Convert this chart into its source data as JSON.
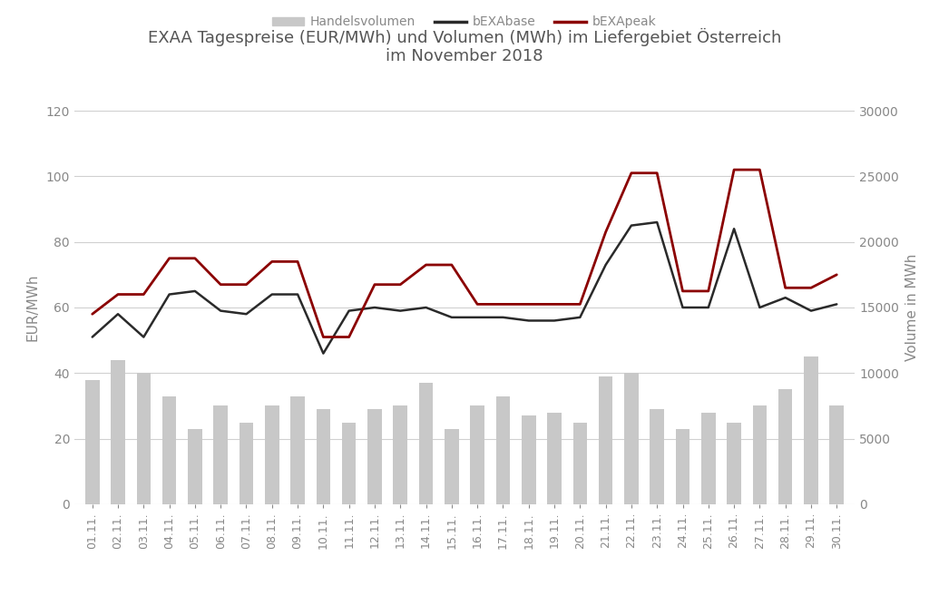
{
  "title": "EXAA Tagespreise (EUR/MWh) und Volumen (MWh) im Liefergebiet Österreich\nim November 2018",
  "ylabel_left": "EUR/MWh",
  "ylabel_right": "Volume in MWh",
  "days": [
    "01.11.",
    "02.11.",
    "03.11.",
    "04.11.",
    "05.11.",
    "06.11.",
    "07.11.",
    "08.11.",
    "09.11.",
    "10.11.",
    "11.11.",
    "12.11.",
    "13.11.",
    "14.11.",
    "15.11.",
    "16.11.",
    "17.11.",
    "18.11.",
    "19.11.",
    "20.11.",
    "21.11.",
    "22.11.",
    "23.11.",
    "24.11.",
    "25.11.",
    "26.11.",
    "27.11.",
    "28.11.",
    "29.11.",
    "30.11."
  ],
  "bEXAbase": [
    51,
    58,
    51,
    64,
    65,
    59,
    58,
    64,
    64,
    46,
    59,
    60,
    59,
    60,
    57,
    57,
    57,
    56,
    56,
    57,
    73,
    85,
    86,
    60,
    60,
    84,
    60,
    63,
    59,
    61
  ],
  "bEXApeak": [
    58,
    64,
    64,
    75,
    75,
    67,
    67,
    74,
    74,
    51,
    51,
    67,
    67,
    73,
    73,
    61,
    61,
    61,
    61,
    61,
    83,
    101,
    101,
    65,
    65,
    102,
    102,
    66,
    66,
    70
  ],
  "volume": [
    38,
    44,
    40,
    33,
    23,
    30,
    25,
    30,
    33,
    29,
    25,
    29,
    30,
    37,
    23,
    30,
    33,
    27,
    28,
    25,
    39,
    40,
    29,
    23,
    28,
    25,
    30,
    35,
    45,
    30
  ],
  "ylim_left": [
    0,
    120
  ],
  "ylim_right": [
    0,
    30000
  ],
  "yticks_left": [
    0,
    20,
    40,
    60,
    80,
    100,
    120
  ],
  "yticks_right": [
    0,
    5000,
    10000,
    15000,
    20000,
    25000,
    30000
  ],
  "bar_color": "#c8c8c8",
  "base_color": "#2a2a2a",
  "peak_color": "#8b0000",
  "background_color": "#ffffff",
  "grid_color": "#d0d0d0",
  "title_color": "#555555",
  "axis_color": "#888888",
  "legend_labels": [
    "Handelsvolumen",
    "bEXAbase",
    "bEXApeak"
  ],
  "title_fontsize": 13,
  "tick_fontsize": 10,
  "label_fontsize": 11,
  "legend_fontsize": 10
}
